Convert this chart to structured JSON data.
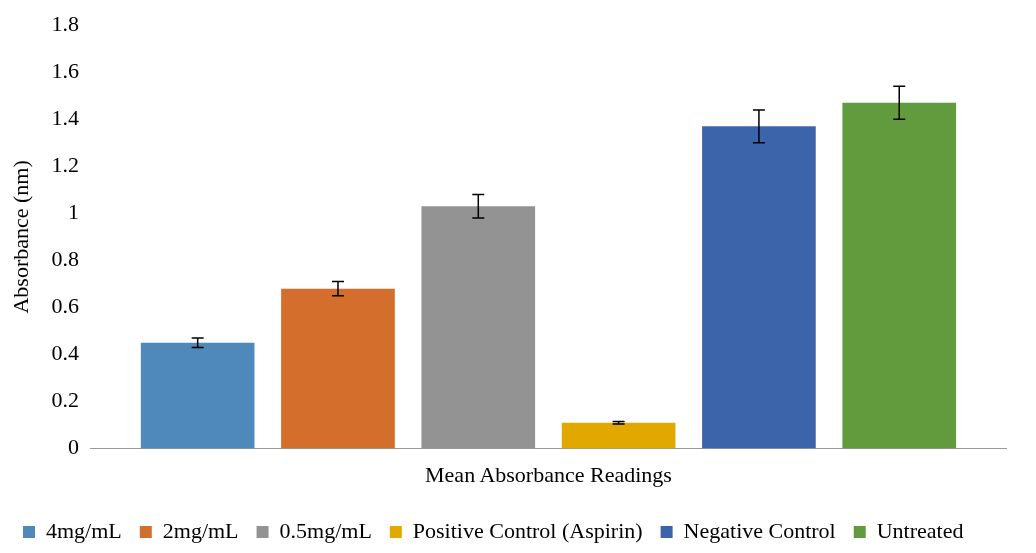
{
  "chart_data": {
    "type": "bar",
    "categories": [
      "Mean Absorbance Readings"
    ],
    "ylabel": "Absorbance (nm)",
    "series": [
      {
        "name": "4mg/mL",
        "color": "#4f88bb",
        "values": [
          0.45
        ],
        "errors": [
          0.02
        ]
      },
      {
        "name": "2mg/mL",
        "color": "#d36e2c",
        "values": [
          0.68
        ],
        "errors": [
          0.03
        ]
      },
      {
        "name": "0.5mg/mL",
        "color": "#939393",
        "values": [
          1.03
        ],
        "errors": [
          0.05
        ]
      },
      {
        "name": "Positive Control (Aspirin)",
        "color": "#e1a900",
        "values": [
          0.11
        ],
        "errors": [
          0.005
        ]
      },
      {
        "name": "Negative Control",
        "color": "#3c64ab",
        "values": [
          1.37
        ],
        "errors": [
          0.07
        ]
      },
      {
        "name": "Untreated",
        "color": "#629a3e",
        "values": [
          1.47
        ],
        "errors": [
          0.07
        ]
      }
    ],
    "ylim": [
      0,
      1.8
    ],
    "yticks": [
      0,
      0.2,
      0.4,
      0.6,
      0.8,
      1,
      1.2,
      1.4,
      1.6,
      1.8
    ],
    "grid": false,
    "legend": "bottom"
  }
}
